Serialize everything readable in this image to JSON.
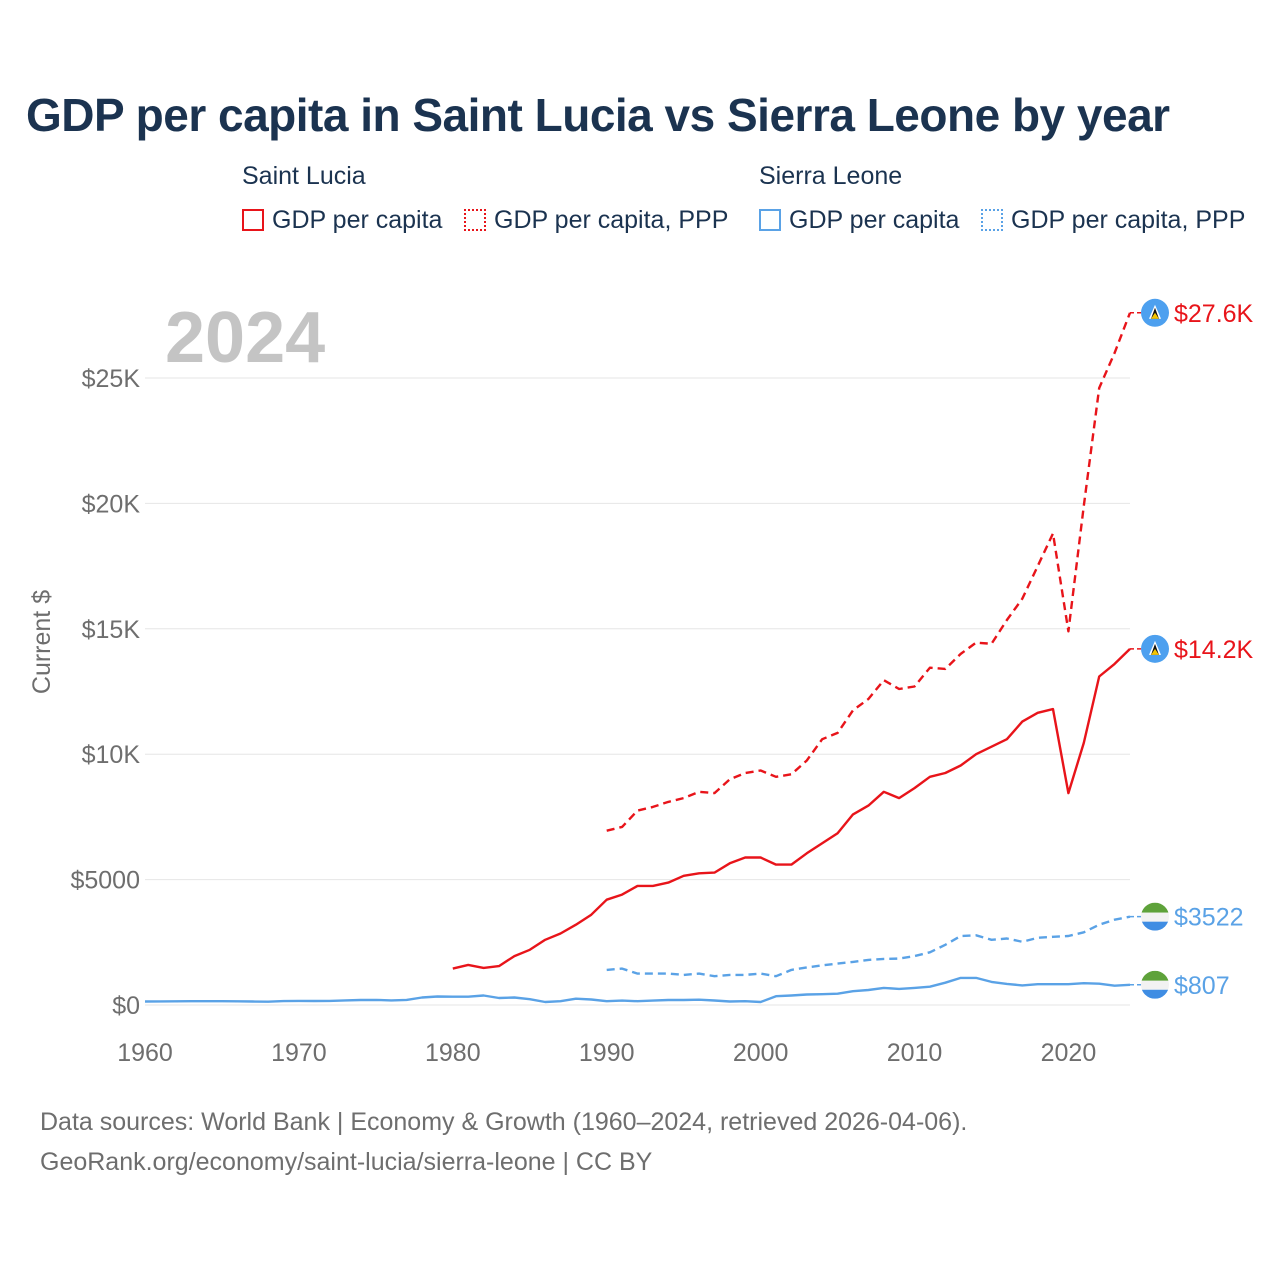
{
  "title": "GDP per capita in Saint Lucia vs Sierra Leone by year",
  "legend": {
    "group1": "Saint Lucia",
    "group2": "Sierra Leone",
    "item1": "GDP per capita",
    "item2": "GDP per capita, PPP",
    "item3": "GDP per capita",
    "item4": "GDP per capita, PPP"
  },
  "year_watermark": "2024",
  "footer": {
    "line1": "Data sources: World Bank | Economy & Growth (1960–2024, retrieved 2026-04-06).",
    "line2": "GeoRank.org/economy/saint-lucia/sierra-leone | CC BY"
  },
  "colors": {
    "saint_lucia": "#e8141a",
    "sierra_leone": "#5aa2e6",
    "title": "#1b3350",
    "axis_text": "#6e6e6e",
    "grid": "#e6e6e6",
    "watermark": "#c4c4c4"
  },
  "chart_data": {
    "type": "line",
    "title": "GDP per capita in Saint Lucia vs Sierra Leone by year",
    "xlabel": "",
    "ylabel": "Current $",
    "xlim": [
      1960,
      2024
    ],
    "ylim": [
      0,
      28000
    ],
    "x_ticks": [
      1960,
      1970,
      1980,
      1990,
      2000,
      2010,
      2020
    ],
    "x_tick_labels": [
      "1960",
      "1970",
      "1980",
      "1990",
      "2000",
      "2010",
      "2020"
    ],
    "y_ticks": [
      0,
      5000,
      10000,
      15000,
      20000,
      25000
    ],
    "y_tick_labels": [
      "$0",
      "$5000",
      "$10K",
      "$15K",
      "$20K",
      "$25K"
    ],
    "series": [
      {
        "name": "Saint Lucia — GDP per capita",
        "country": "Saint Lucia",
        "style": "solid",
        "color": "#e8141a",
        "end_label": "$14.2K",
        "x": [
          1980,
          1981,
          1982,
          1983,
          1984,
          1985,
          1986,
          1987,
          1988,
          1989,
          1990,
          1991,
          1992,
          1993,
          1994,
          1995,
          1996,
          1997,
          1998,
          1999,
          2000,
          2001,
          2002,
          2003,
          2004,
          2005,
          2006,
          2007,
          2008,
          2009,
          2010,
          2011,
          2012,
          2013,
          2014,
          2015,
          2016,
          2017,
          2018,
          2019,
          2020,
          2021,
          2022,
          2023,
          2024
        ],
        "values": [
          1450,
          1600,
          1480,
          1550,
          1950,
          2200,
          2600,
          2850,
          3200,
          3600,
          4200,
          4400,
          4750,
          4750,
          4880,
          5150,
          5250,
          5280,
          5650,
          5880,
          5880,
          5600,
          5600,
          6050,
          6450,
          6850,
          7600,
          7950,
          8500,
          8250,
          8650,
          9100,
          9250,
          9550,
          10000,
          10300,
          10600,
          11300,
          11650,
          11800,
          8450,
          10450,
          13100,
          13600,
          14200
        ]
      },
      {
        "name": "Saint Lucia — GDP per capita, PPP",
        "country": "Saint Lucia",
        "style": "dashed",
        "color": "#e8141a",
        "end_label": "$27.6K",
        "x": [
          1990,
          1991,
          1992,
          1993,
          1994,
          1995,
          1996,
          1997,
          1998,
          1999,
          2000,
          2001,
          2002,
          2003,
          2004,
          2005,
          2006,
          2007,
          2008,
          2009,
          2010,
          2011,
          2012,
          2013,
          2014,
          2015,
          2016,
          2017,
          2018,
          2019,
          2020,
          2021,
          2022,
          2023,
          2024
        ],
        "values": [
          6950,
          7100,
          7750,
          7900,
          8100,
          8250,
          8500,
          8450,
          9000,
          9250,
          9350,
          9100,
          9200,
          9750,
          10600,
          10850,
          11750,
          12200,
          12950,
          12600,
          12700,
          13450,
          13400,
          14000,
          14450,
          14400,
          15350,
          16200,
          17500,
          18800,
          14900,
          19900,
          24600,
          26000,
          27600
        ]
      },
      {
        "name": "Sierra Leone — GDP per capita",
        "country": "Sierra Leone",
        "style": "solid",
        "color": "#5aa2e6",
        "end_label": "$807",
        "x": [
          1960,
          1961,
          1962,
          1963,
          1964,
          1965,
          1966,
          1967,
          1968,
          1969,
          1970,
          1971,
          1972,
          1973,
          1974,
          1975,
          1976,
          1977,
          1978,
          1979,
          1980,
          1981,
          1982,
          1983,
          1984,
          1985,
          1986,
          1987,
          1988,
          1989,
          1990,
          1991,
          1992,
          1993,
          1994,
          1995,
          1996,
          1997,
          1998,
          1999,
          2000,
          2001,
          2002,
          2003,
          2004,
          2005,
          2006,
          2007,
          2008,
          2009,
          2010,
          2011,
          2012,
          2013,
          2014,
          2015,
          2016,
          2017,
          2018,
          2019,
          2020,
          2021,
          2022,
          2023,
          2024
        ],
        "values": [
          140,
          145,
          148,
          150,
          150,
          150,
          148,
          140,
          130,
          155,
          165,
          160,
          165,
          185,
          200,
          205,
          185,
          205,
          300,
          340,
          330,
          330,
          380,
          280,
          300,
          230,
          120,
          150,
          250,
          220,
          150,
          175,
          150,
          175,
          200,
          200,
          210,
          180,
          140,
          150,
          120,
          350,
          380,
          420,
          430,
          450,
          550,
          600,
          680,
          640,
          680,
          730,
          890,
          1080,
          1080,
          920,
          840,
          780,
          830,
          830,
          830,
          870,
          850,
          770,
          807
        ]
      },
      {
        "name": "Sierra Leone — GDP per capita, PPP",
        "country": "Sierra Leone",
        "style": "dashed",
        "color": "#5aa2e6",
        "end_label": "$3522",
        "x": [
          1990,
          1991,
          1992,
          1993,
          1994,
          1995,
          1996,
          1997,
          1998,
          1999,
          2000,
          2001,
          2002,
          2003,
          2004,
          2005,
          2006,
          2007,
          2008,
          2009,
          2010,
          2011,
          2012,
          2013,
          2014,
          2015,
          2016,
          2017,
          2018,
          2019,
          2020,
          2021,
          2022,
          2023,
          2024
        ],
        "values": [
          1400,
          1450,
          1250,
          1250,
          1250,
          1200,
          1250,
          1150,
          1200,
          1200,
          1250,
          1150,
          1400,
          1500,
          1580,
          1650,
          1720,
          1800,
          1840,
          1850,
          1950,
          2100,
          2400,
          2750,
          2780,
          2600,
          2650,
          2520,
          2680,
          2720,
          2750,
          2900,
          3200,
          3400,
          3522
        ]
      }
    ]
  }
}
